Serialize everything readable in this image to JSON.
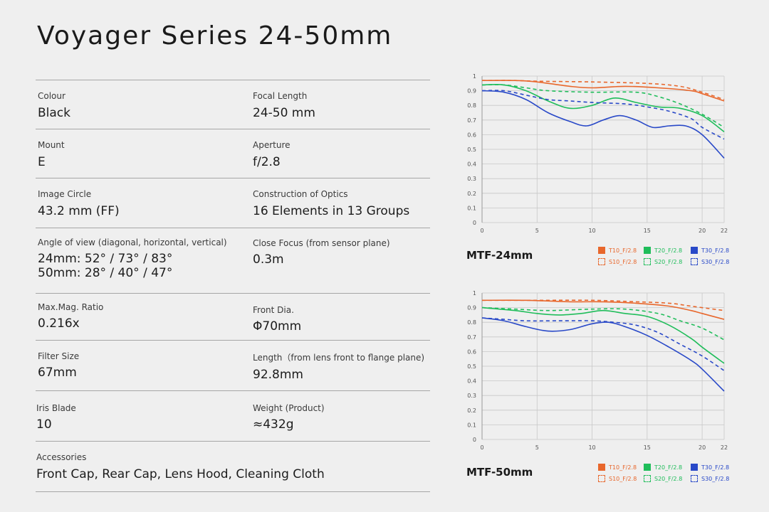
{
  "title": "Voyager Series 24-50mm",
  "specs": [
    {
      "left_label": "Colour",
      "left_value": "Black",
      "right_label": "Focal Length",
      "right_value": "24-50 mm"
    },
    {
      "left_label": "Mount",
      "left_value": "E",
      "right_label": "Aperture",
      "right_value": "f/2.8"
    },
    {
      "left_label": "Image Circle",
      "left_value": "43.2 mm (FF)",
      "right_label": "Construction of Optics",
      "right_value": "16 Elements in 13 Groups"
    },
    {
      "left_label": "Angle of view (diagonal, horizontal, vertical)",
      "left_value_line1": "24mm: 52° / 73° / 83°",
      "left_value_line2": "50mm: 28° / 40° / 47°",
      "right_label": "Close Focus (from sensor plane)",
      "right_value": "0.3m"
    },
    {
      "left_label": "Max.Mag. Ratio",
      "left_value": "0.216x",
      "right_label": "Front Dia.",
      "right_value": "Φ70mm"
    },
    {
      "left_label": "Filter Size",
      "left_value": "67mm",
      "right_label": "Length（from lens front to flange plane)",
      "right_value": "92.8mm"
    },
    {
      "left_label": "Iris Blade",
      "left_value": "10",
      "right_label": "Weight (Product)",
      "right_value": "≈432g"
    }
  ],
  "accessories": {
    "label": "Accessories",
    "value": "Front Cap, Rear Cap, Lens Hood, Cleaning Cloth"
  },
  "colors": {
    "orange": "#e8672c",
    "green": "#1fbd5a",
    "blue": "#2949c8",
    "grid": "#c8c8c8"
  },
  "chart_data": [
    {
      "type": "line",
      "title": "MTF-24mm",
      "xlim": [
        0,
        22
      ],
      "ylim": [
        0,
        1
      ],
      "x_ticks": [
        "0",
        "5",
        "10",
        "15",
        "20",
        "22"
      ],
      "y_ticks": [
        "0",
        "0.1",
        "0.2",
        "0.3",
        "0.4",
        "0.5",
        "0.6",
        "0.7",
        "0.8",
        "0.9",
        "1"
      ],
      "grid": true,
      "legend_position": "bottom-right",
      "series": [
        {
          "name": "T10_F/2.8",
          "color": "orange",
          "dashed": false,
          "points": [
            [
              0,
              0.97
            ],
            [
              3,
              0.97
            ],
            [
              5,
              0.96
            ],
            [
              8,
              0.93
            ],
            [
              10,
              0.92
            ],
            [
              13,
              0.93
            ],
            [
              16,
              0.92
            ],
            [
              19,
              0.9
            ],
            [
              20,
              0.88
            ],
            [
              22,
              0.83
            ]
          ]
        },
        {
          "name": "S10_F/2.8",
          "color": "orange",
          "dashed": true,
          "points": [
            [
              0,
              0.97
            ],
            [
              3,
              0.97
            ],
            [
              5,
              0.965
            ],
            [
              10,
              0.96
            ],
            [
              15,
              0.95
            ],
            [
              18,
              0.93
            ],
            [
              20,
              0.89
            ],
            [
              22,
              0.84
            ]
          ]
        },
        {
          "name": "T20_F/2.8",
          "color": "green",
          "dashed": false,
          "points": [
            [
              0,
              0.94
            ],
            [
              2,
              0.94
            ],
            [
              4,
              0.9
            ],
            [
              6,
              0.83
            ],
            [
              8,
              0.78
            ],
            [
              10,
              0.8
            ],
            [
              12,
              0.85
            ],
            [
              14,
              0.82
            ],
            [
              16,
              0.79
            ],
            [
              18,
              0.78
            ],
            [
              20,
              0.73
            ],
            [
              22,
              0.62
            ]
          ]
        },
        {
          "name": "S20_F/2.8",
          "color": "green",
          "dashed": true,
          "points": [
            [
              0,
              0.94
            ],
            [
              2,
              0.94
            ],
            [
              4,
              0.92
            ],
            [
              6,
              0.9
            ],
            [
              10,
              0.89
            ],
            [
              14,
              0.89
            ],
            [
              16,
              0.86
            ],
            [
              18,
              0.81
            ],
            [
              20,
              0.74
            ],
            [
              22,
              0.65
            ]
          ]
        },
        {
          "name": "T30_F/2.8",
          "color": "blue",
          "dashed": false,
          "points": [
            [
              0,
              0.9
            ],
            [
              2,
              0.89
            ],
            [
              4,
              0.84
            ],
            [
              6,
              0.75
            ],
            [
              8,
              0.69
            ],
            [
              9.5,
              0.66
            ],
            [
              11,
              0.7
            ],
            [
              12.5,
              0.73
            ],
            [
              14,
              0.7
            ],
            [
              15.5,
              0.65
            ],
            [
              17,
              0.66
            ],
            [
              18.5,
              0.66
            ],
            [
              20,
              0.6
            ],
            [
              22,
              0.44
            ]
          ]
        },
        {
          "name": "S30_F/2.8",
          "color": "blue",
          "dashed": true,
          "points": [
            [
              0,
              0.9
            ],
            [
              2,
              0.9
            ],
            [
              4,
              0.87
            ],
            [
              6,
              0.84
            ],
            [
              8,
              0.83
            ],
            [
              10,
              0.82
            ],
            [
              13,
              0.81
            ],
            [
              15,
              0.79
            ],
            [
              17,
              0.76
            ],
            [
              19,
              0.71
            ],
            [
              20,
              0.65
            ],
            [
              22,
              0.57
            ]
          ]
        }
      ]
    },
    {
      "type": "line",
      "title": "MTF-50mm",
      "xlim": [
        0,
        22
      ],
      "ylim": [
        0,
        1
      ],
      "x_ticks": [
        "0",
        "5",
        "10",
        "15",
        "20",
        "22"
      ],
      "y_ticks": [
        "0",
        "0.1",
        "0.2",
        "0.3",
        "0.4",
        "0.5",
        "0.6",
        "0.7",
        "0.8",
        "0.9",
        "1"
      ],
      "grid": true,
      "legend_position": "bottom-right",
      "series": [
        {
          "name": "T10_F/2.8",
          "color": "orange",
          "dashed": false,
          "points": [
            [
              0,
              0.95
            ],
            [
              4,
              0.95
            ],
            [
              8,
              0.94
            ],
            [
              11,
              0.94
            ],
            [
              14,
              0.93
            ],
            [
              17,
              0.91
            ],
            [
              19,
              0.88
            ],
            [
              20,
              0.86
            ],
            [
              22,
              0.82
            ]
          ]
        },
        {
          "name": "S10_F/2.8",
          "color": "orange",
          "dashed": true,
          "points": [
            [
              0,
              0.95
            ],
            [
              5,
              0.95
            ],
            [
              10,
              0.95
            ],
            [
              14,
              0.94
            ],
            [
              17,
              0.93
            ],
            [
              19,
              0.91
            ],
            [
              22,
              0.88
            ]
          ]
        },
        {
          "name": "T20_F/2.8",
          "color": "green",
          "dashed": false,
          "points": [
            [
              0,
              0.9
            ],
            [
              3,
              0.88
            ],
            [
              5,
              0.86
            ],
            [
              7,
              0.85
            ],
            [
              9,
              0.86
            ],
            [
              11,
              0.88
            ],
            [
              13,
              0.86
            ],
            [
              15,
              0.84
            ],
            [
              17,
              0.78
            ],
            [
              19,
              0.69
            ],
            [
              20,
              0.63
            ],
            [
              22,
              0.52
            ]
          ]
        },
        {
          "name": "S20_F/2.8",
          "color": "green",
          "dashed": true,
          "points": [
            [
              0,
              0.9
            ],
            [
              3,
              0.89
            ],
            [
              6,
              0.88
            ],
            [
              10,
              0.89
            ],
            [
              13,
              0.89
            ],
            [
              16,
              0.86
            ],
            [
              18,
              0.81
            ],
            [
              20,
              0.76
            ],
            [
              22,
              0.68
            ]
          ]
        },
        {
          "name": "T30_F/2.8",
          "color": "blue",
          "dashed": false,
          "points": [
            [
              0,
              0.83
            ],
            [
              2,
              0.81
            ],
            [
              4,
              0.77
            ],
            [
              6,
              0.74
            ],
            [
              8,
              0.75
            ],
            [
              10,
              0.79
            ],
            [
              11.5,
              0.8
            ],
            [
              13,
              0.77
            ],
            [
              15,
              0.71
            ],
            [
              17,
              0.63
            ],
            [
              19,
              0.54
            ],
            [
              20,
              0.48
            ],
            [
              22,
              0.33
            ]
          ]
        },
        {
          "name": "S30_F/2.8",
          "color": "blue",
          "dashed": true,
          "points": [
            [
              0,
              0.83
            ],
            [
              2,
              0.82
            ],
            [
              4,
              0.81
            ],
            [
              7,
              0.81
            ],
            [
              10,
              0.81
            ],
            [
              12,
              0.8
            ],
            [
              14,
              0.78
            ],
            [
              16,
              0.73
            ],
            [
              18,
              0.65
            ],
            [
              20,
              0.57
            ],
            [
              22,
              0.47
            ]
          ]
        }
      ]
    }
  ]
}
